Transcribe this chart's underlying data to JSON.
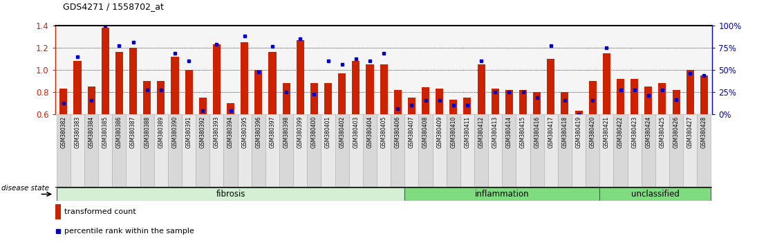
{
  "title": "GDS4271 / 1558702_at",
  "samples": [
    "GSM380382",
    "GSM380383",
    "GSM380384",
    "GSM380385",
    "GSM380386",
    "GSM380387",
    "GSM380388",
    "GSM380389",
    "GSM380390",
    "GSM380391",
    "GSM380392",
    "GSM380393",
    "GSM380394",
    "GSM380395",
    "GSM380396",
    "GSM380397",
    "GSM380398",
    "GSM380399",
    "GSM380400",
    "GSM380401",
    "GSM380402",
    "GSM380403",
    "GSM380404",
    "GSM380405",
    "GSM380406",
    "GSM380407",
    "GSM380408",
    "GSM380409",
    "GSM380410",
    "GSM380411",
    "GSM380412",
    "GSM380413",
    "GSM380414",
    "GSM380415",
    "GSM380416",
    "GSM380417",
    "GSM380418",
    "GSM380419",
    "GSM380420",
    "GSM380421",
    "GSM380422",
    "GSM380423",
    "GSM380424",
    "GSM380425",
    "GSM380426",
    "GSM380427",
    "GSM380428"
  ],
  "bar_values": [
    0.83,
    1.08,
    0.85,
    1.38,
    1.16,
    1.2,
    0.9,
    0.9,
    1.12,
    1.0,
    0.75,
    1.23,
    0.7,
    1.25,
    1.0,
    1.16,
    0.88,
    1.27,
    0.88,
    0.88,
    0.97,
    1.08,
    1.05,
    1.05,
    0.82,
    0.75,
    0.84,
    0.83,
    0.73,
    0.75,
    1.05,
    0.83,
    0.82,
    0.82,
    0.8,
    1.1,
    0.8,
    0.63,
    0.9,
    1.15,
    0.92,
    0.92,
    0.85,
    0.88,
    0.82,
    1.0,
    0.95
  ],
  "dot_values": [
    0.7,
    1.12,
    0.72,
    1.4,
    1.22,
    1.25,
    0.82,
    0.82,
    1.15,
    1.08,
    0.63,
    1.23,
    0.63,
    1.31,
    0.98,
    1.21,
    0.8,
    1.28,
    0.78,
    1.08,
    1.05,
    1.1,
    1.08,
    1.15,
    0.65,
    0.68,
    0.72,
    0.72,
    0.68,
    0.68,
    1.08,
    0.8,
    0.8,
    0.8,
    0.75,
    1.22,
    0.72,
    0.6,
    0.72,
    1.2,
    0.82,
    0.82,
    0.77,
    0.82,
    0.73,
    0.97,
    0.95
  ],
  "groups": [
    {
      "label": "fibrosis",
      "start": 0,
      "end": 25,
      "color": "#d4f0d4"
    },
    {
      "label": "inflammation",
      "start": 25,
      "end": 39,
      "color": "#80dc80"
    },
    {
      "label": "unclassified",
      "start": 39,
      "end": 47,
      "color": "#80dc80"
    }
  ],
  "ylim": [
    0.6,
    1.4
  ],
  "yticks_left": [
    0.6,
    0.8,
    1.0,
    1.2,
    1.4
  ],
  "yticks_right": [
    0,
    25,
    50,
    75,
    100
  ],
  "bar_color": "#cc2200",
  "dot_color": "#0000cc",
  "bar_width": 0.55,
  "background_color": "#ffffff",
  "plot_bg_color": "#f5f5f5",
  "tick_bg_even": "#d8d8d8",
  "tick_bg_odd": "#e8e8e8",
  "legend_transformed": "transformed count",
  "legend_percentile": "percentile rank within the sample",
  "ylabel_left_color": "#cc2200",
  "ylabel_right_color": "#0000cc",
  "disease_state_label": "disease state"
}
